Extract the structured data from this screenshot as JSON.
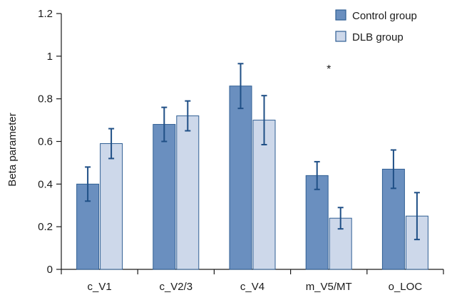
{
  "chart_data": {
    "type": "bar",
    "title": "",
    "xlabel": "",
    "ylabel": "Beta parameter",
    "ylim": [
      0,
      1.2
    ],
    "yticks": [
      "0",
      "0.2",
      "0.4",
      "0.6",
      "0.8",
      "1",
      "1.2"
    ],
    "ytick_values": [
      0,
      0.2,
      0.4,
      0.6,
      0.8,
      1.0,
      1.2
    ],
    "categories": [
      "c_V1",
      "c_V2/3",
      "c_V4",
      "m_V5/MT",
      "o_LOC"
    ],
    "series": [
      {
        "name": "Control group",
        "color": "#6a8fbf",
        "values": [
          0.4,
          0.68,
          0.86,
          0.44,
          0.47
        ],
        "error": [
          0.08,
          0.08,
          0.105,
          0.065,
          0.09
        ]
      },
      {
        "name": "DLB group",
        "color": "#cdd8ea",
        "values": [
          0.59,
          0.72,
          0.7,
          0.24,
          0.25
        ],
        "error": [
          0.07,
          0.07,
          0.115,
          0.05,
          0.11
        ]
      }
    ],
    "legend_position": "top-right",
    "grid": false,
    "annotations": [
      {
        "text": "*",
        "category": "m_V5/MT",
        "y": 0.95
      }
    ],
    "colors": {
      "bar_edge": "#2f5e93",
      "error_bar": "#1f4f86",
      "axis": "#1a1a1a"
    }
  }
}
